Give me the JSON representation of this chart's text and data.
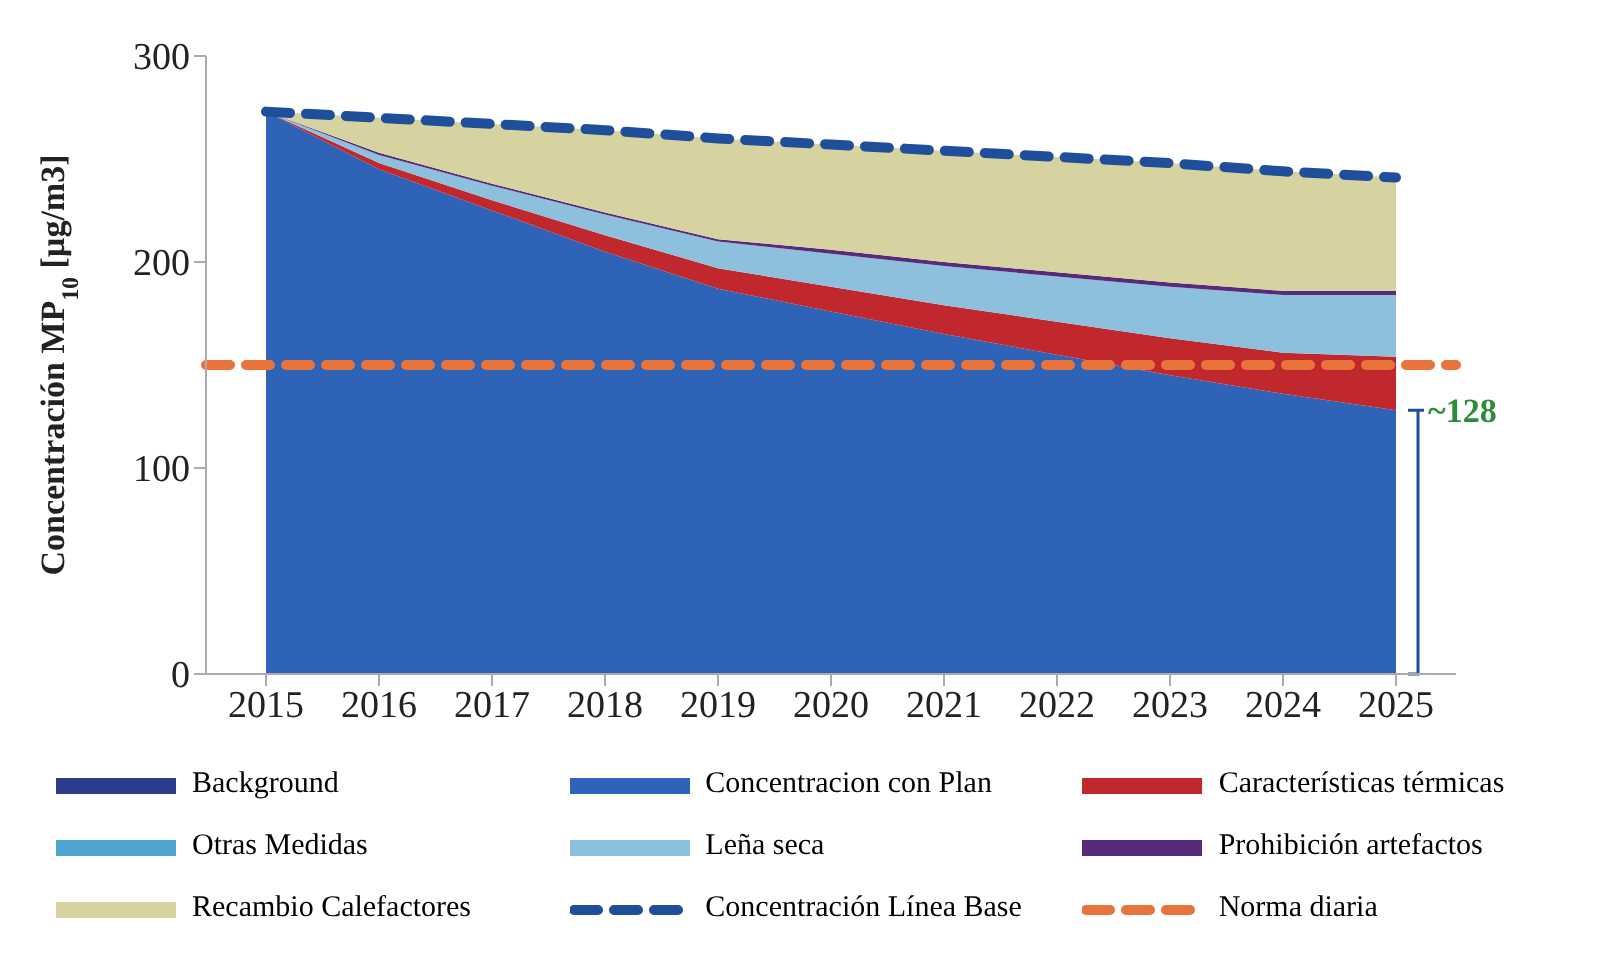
{
  "chart_data": {
    "type": "area",
    "stacked": true,
    "ylabel": "Concentración MP$_{10}$ [µg/m3]",
    "categories": [
      "2015",
      "2016",
      "2017",
      "2018",
      "2019",
      "2020",
      "2021",
      "2022",
      "2023",
      "2024",
      "2025"
    ],
    "ylim": [
      0,
      300
    ],
    "yticks": [
      0,
      100,
      200,
      300
    ],
    "legend": "bottom",
    "marker": "none",
    "series": [
      {
        "name": "Background",
        "color": "#2b3c8c",
        "values": [
          null,
          null,
          null,
          null,
          null,
          null,
          null,
          null,
          null,
          null,
          null
        ]
      },
      {
        "name": "Concentracion con Plan",
        "color": "#2f63b8",
        "values": [
          273,
          245,
          225,
          205,
          187,
          176,
          165,
          155,
          145,
          136,
          128
        ]
      },
      {
        "name": "Características térmicas",
        "color": "#c0282d",
        "values": [
          0,
          3,
          5,
          8,
          10,
          12,
          14,
          16,
          18,
          20,
          26
        ]
      },
      {
        "name": "Otras Medidas",
        "color": "#4fa3d1",
        "values": [
          null,
          null,
          null,
          null,
          null,
          null,
          null,
          null,
          null,
          null,
          null
        ]
      },
      {
        "name": "Leña seca",
        "color": "#8cc0dd",
        "values": [
          0,
          4,
          7,
          10,
          13,
          16,
          19,
          22,
          25,
          28,
          30
        ]
      },
      {
        "name": "Prohibición artefactos",
        "color": "#5a2a7a",
        "values": [
          0,
          1,
          1,
          1,
          1,
          2,
          2,
          2,
          2,
          2,
          2
        ]
      },
      {
        "name": "Recambio Calefactores",
        "color": "#d6d3a0",
        "values": [
          0,
          17,
          29,
          40,
          49,
          51,
          54,
          56,
          58,
          58,
          55
        ]
      },
      {
        "name": "Concentración Línea Base",
        "type": "line",
        "line_style": "dashed",
        "color": "#1f4e9a",
        "values": [
          273,
          270,
          267,
          264,
          260,
          257,
          254,
          251,
          248,
          244,
          241
        ]
      }
    ],
    "ref_lines": [
      {
        "axis": "y",
        "value": 150,
        "label": "Norma diaria",
        "color": "#e8743b",
        "line_style": "dashed"
      }
    ],
    "annotations": [
      {
        "text": "~128",
        "x": "2025",
        "y": 128
      }
    ]
  }
}
